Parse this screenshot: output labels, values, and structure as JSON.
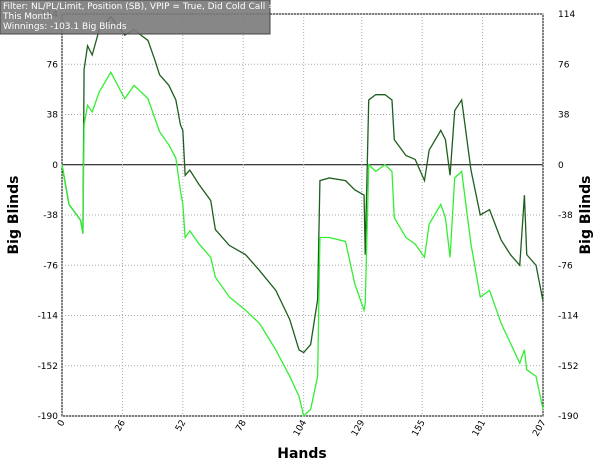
{
  "chart_data": {
    "type": "line",
    "annotations": [
      "Filter: NL/PL/Limit, Position (SB), VPIP = True, Did Cold Call = True",
      "This Month",
      "Winnings: -103.1 Big Blinds"
    ],
    "xlabel": "Hands",
    "ylabel": "Big Blinds",
    "x": [
      0,
      3,
      8,
      9,
      9.5,
      11,
      13,
      16,
      21,
      27,
      31,
      37,
      40,
      42,
      46,
      49,
      51,
      52,
      53,
      55,
      59,
      64,
      66,
      72,
      79,
      85,
      92,
      98,
      102,
      104,
      107,
      110,
      111,
      115,
      122,
      126,
      130,
      130.5,
      132,
      135,
      139,
      142,
      143,
      148,
      152,
      156,
      158,
      163,
      165,
      167,
      169,
      172,
      176,
      180,
      184,
      189,
      193,
      197,
      199,
      200,
      204,
      207
    ],
    "series": [
      {
        "color": "#1e5e1e",
        "values": [
          0,
          -30,
          -42,
          -52,
          72,
          90,
          83,
          102,
          112,
          98,
          102,
          94,
          79,
          68,
          60,
          49,
          30,
          26,
          -8,
          -4,
          -15,
          -27,
          -49,
          -61,
          -68,
          -80,
          -95,
          -117,
          -140,
          -142,
          -136,
          -102,
          -12,
          -10,
          -12,
          -19,
          -23,
          -68,
          49,
          53,
          53,
          49,
          19,
          7,
          4,
          -12,
          11,
          26,
          19,
          -8,
          41,
          49,
          -4,
          -38,
          -34,
          -57,
          -68,
          -76,
          -23,
          -68,
          -76,
          -103
        ]
      },
      {
        "color": "#33ee33",
        "values": [
          0,
          -30,
          -42,
          -52,
          30,
          45,
          40,
          55,
          70,
          50,
          60,
          50,
          35,
          25,
          15,
          5,
          -20,
          -30,
          -55,
          -50,
          -60,
          -70,
          -85,
          -100,
          -110,
          -120,
          -140,
          -160,
          -175,
          -190,
          -185,
          -160,
          -55,
          -55,
          -58,
          -90,
          -110,
          -105,
          0,
          -5,
          0,
          -5,
          -40,
          -55,
          -60,
          -70,
          -45,
          -30,
          -40,
          -70,
          -10,
          -5,
          -60,
          -100,
          -95,
          -120,
          -135,
          -150,
          -140,
          -155,
          -160,
          -185
        ]
      }
    ],
    "xlim": [
      0,
      207
    ],
    "xticks": [
      0,
      26,
      52,
      78,
      104,
      129,
      155,
      181,
      207
    ],
    "ylim": [
      -190,
      114
    ],
    "yticks": [
      -190,
      -152,
      -114,
      -76,
      -38,
      0,
      38,
      76,
      114
    ],
    "grid": true
  }
}
